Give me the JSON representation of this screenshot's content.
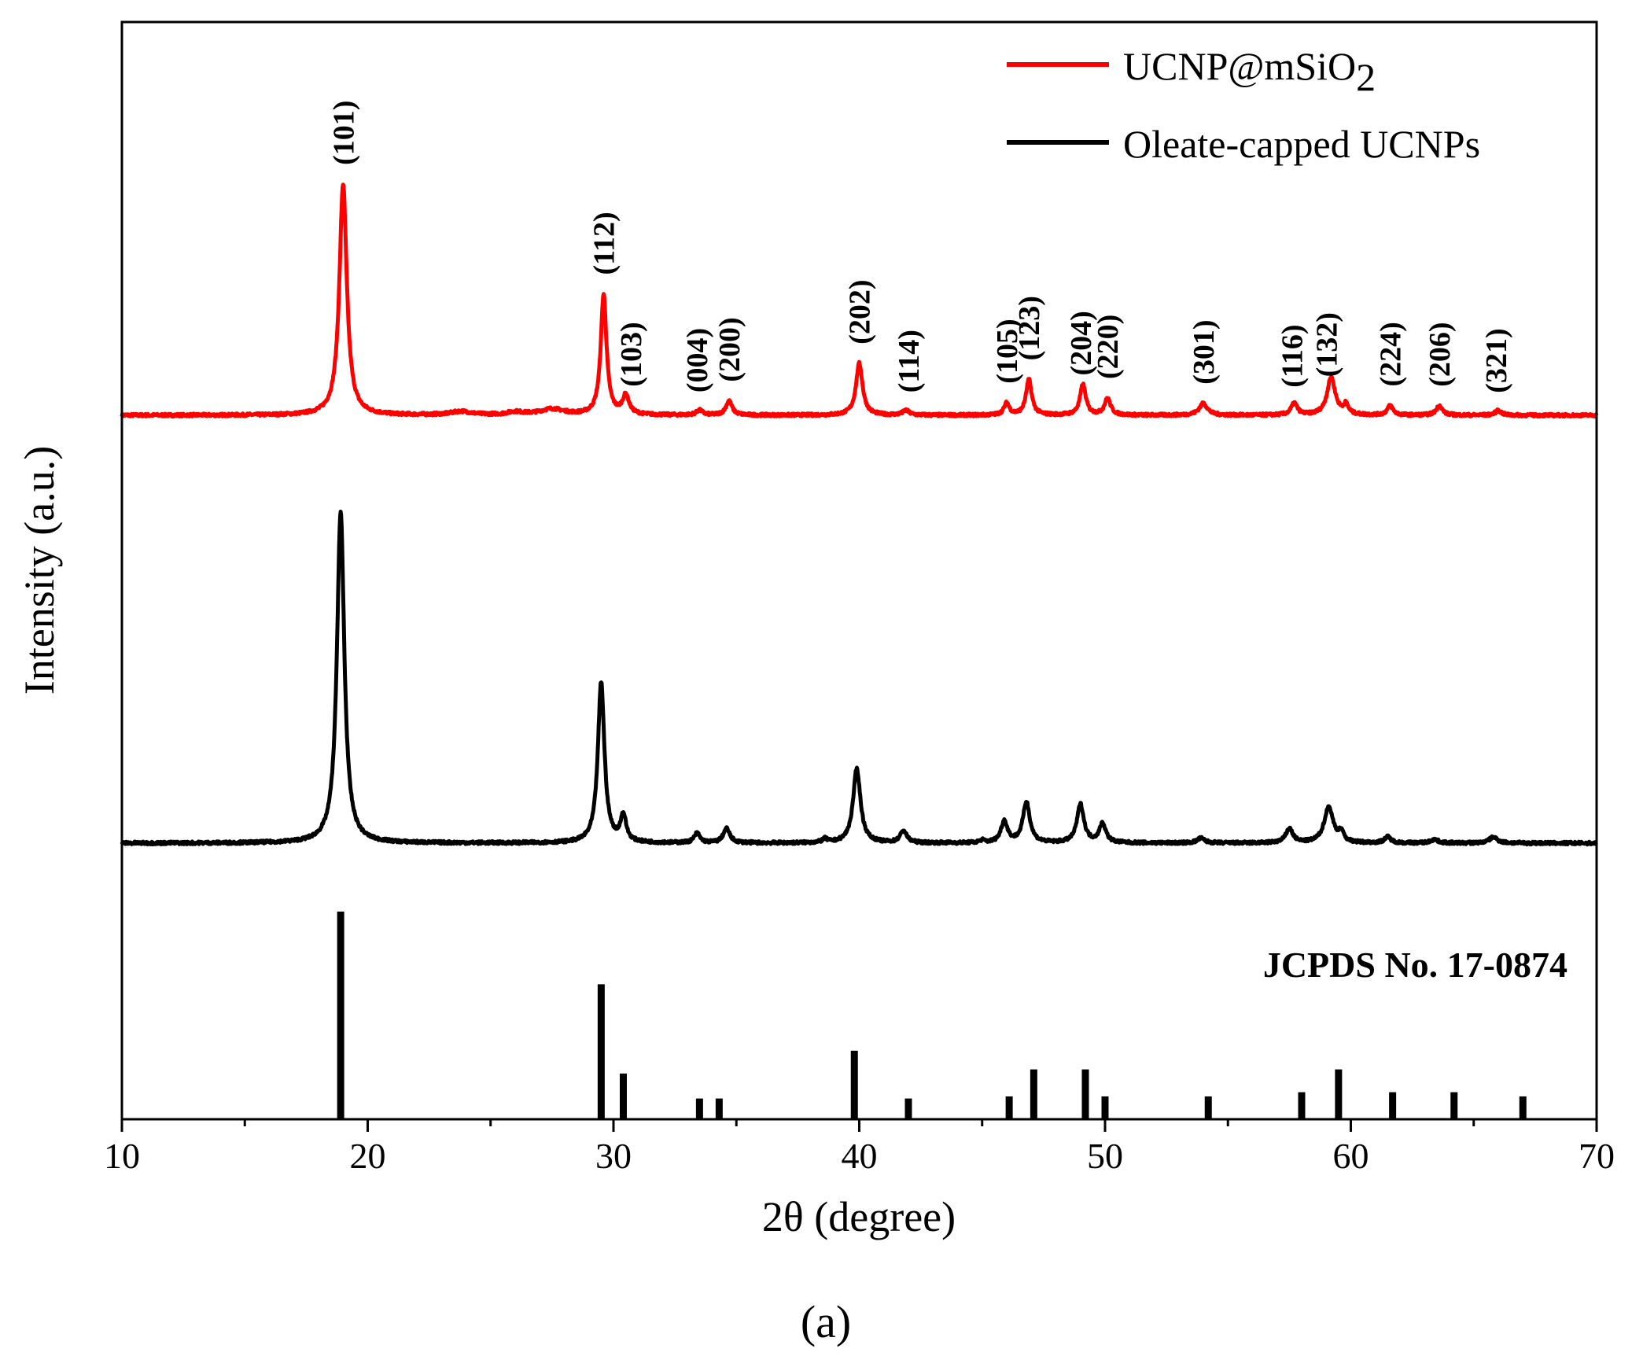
{
  "chart_data": {
    "type": "line",
    "xlabel": "2θ (degree)",
    "ylabel": "Intensity (a.u.)",
    "xlim": [
      10,
      70
    ],
    "x_ticks": [
      "10",
      "20",
      "30",
      "40",
      "50",
      "60",
      "70"
    ],
    "x_minor_step": 5,
    "grid": false,
    "legend_position": "top-right",
    "panel_label": "(a)",
    "reference_label": "JCPDS No. 17-0874",
    "colors": {
      "ucnp_msio2": "#ff0000",
      "oleate": "#000000",
      "reference": "#000000"
    },
    "series": [
      {
        "name": "UCNP@mSiO2",
        "legend_main": "UCNP@mSiO",
        "legend_sub": "2",
        "color": "#ff0000",
        "baseline": 0.0,
        "peaks": [
          [
            19.0,
            0.98,
            0.18
          ],
          [
            23.8,
            0.015,
            0.5
          ],
          [
            26.0,
            0.012,
            0.4
          ],
          [
            27.5,
            0.025,
            0.6
          ],
          [
            29.6,
            0.51,
            0.14
          ],
          [
            30.5,
            0.08,
            0.16
          ],
          [
            33.5,
            0.02,
            0.15
          ],
          [
            34.7,
            0.06,
            0.15
          ],
          [
            40.0,
            0.22,
            0.16
          ],
          [
            41.9,
            0.02,
            0.15
          ],
          [
            46.0,
            0.05,
            0.13
          ],
          [
            46.9,
            0.15,
            0.14
          ],
          [
            49.1,
            0.13,
            0.14
          ],
          [
            50.1,
            0.07,
            0.15
          ],
          [
            54.0,
            0.05,
            0.2
          ],
          [
            57.7,
            0.05,
            0.15
          ],
          [
            59.2,
            0.16,
            0.2
          ],
          [
            59.8,
            0.04,
            0.12
          ],
          [
            61.6,
            0.04,
            0.14
          ],
          [
            63.6,
            0.04,
            0.15
          ],
          [
            66.0,
            0.02,
            0.15
          ]
        ]
      },
      {
        "name": "Oleate-capped UCNPs",
        "color": "#000000",
        "baseline": 0.0,
        "peaks": [
          [
            18.9,
            1.38,
            0.18
          ],
          [
            29.5,
            0.67,
            0.16
          ],
          [
            30.4,
            0.11,
            0.14
          ],
          [
            33.4,
            0.04,
            0.14
          ],
          [
            34.6,
            0.06,
            0.16
          ],
          [
            38.6,
            0.015,
            0.12
          ],
          [
            39.9,
            0.31,
            0.18
          ],
          [
            41.8,
            0.05,
            0.16
          ],
          [
            45.0,
            0.01,
            0.12
          ],
          [
            45.9,
            0.09,
            0.16
          ],
          [
            46.8,
            0.17,
            0.17
          ],
          [
            49.0,
            0.16,
            0.17
          ],
          [
            49.9,
            0.08,
            0.16
          ],
          [
            53.9,
            0.02,
            0.18
          ],
          [
            57.5,
            0.06,
            0.17
          ],
          [
            59.1,
            0.15,
            0.22
          ],
          [
            59.6,
            0.04,
            0.12
          ],
          [
            61.5,
            0.025,
            0.16
          ],
          [
            63.4,
            0.015,
            0.18
          ],
          [
            65.8,
            0.025,
            0.2
          ]
        ]
      }
    ],
    "reference_bars": {
      "name": "JCPDS No. 17-0874",
      "x": [
        18.9,
        29.5,
        30.4,
        33.5,
        34.3,
        39.8,
        42.0,
        46.1,
        47.1,
        49.2,
        50.0,
        54.2,
        58.0,
        59.5,
        61.7,
        64.2,
        67.0
      ],
      "values": [
        100,
        65,
        22,
        10,
        10,
        33,
        10,
        11,
        24,
        24,
        11,
        11,
        13,
        24,
        13,
        13,
        11
      ]
    },
    "annotations": [
      {
        "text": "(101)",
        "x": 19.0
      },
      {
        "text": "(112)",
        "x": 29.6
      },
      {
        "text": "(103)",
        "x": 30.7
      },
      {
        "text": "(004)",
        "x": 33.4
      },
      {
        "text": "(200)",
        "x": 34.7
      },
      {
        "text": "(202)",
        "x": 40.0
      },
      {
        "text": "(114)",
        "x": 42.0
      },
      {
        "text": "(105)",
        "x": 46.0
      },
      {
        "text": "(123)",
        "x": 46.9
      },
      {
        "text": "(204)",
        "x": 49.0
      },
      {
        "text": "(220)",
        "x": 50.1
      },
      {
        "text": "(301)",
        "x": 54.0
      },
      {
        "text": "(116)",
        "x": 57.6
      },
      {
        "text": "(132)",
        "x": 59.0
      },
      {
        "text": "(224)",
        "x": 61.6
      },
      {
        "text": "(206)",
        "x": 63.6
      },
      {
        "text": "(321)",
        "x": 65.9
      }
    ]
  }
}
